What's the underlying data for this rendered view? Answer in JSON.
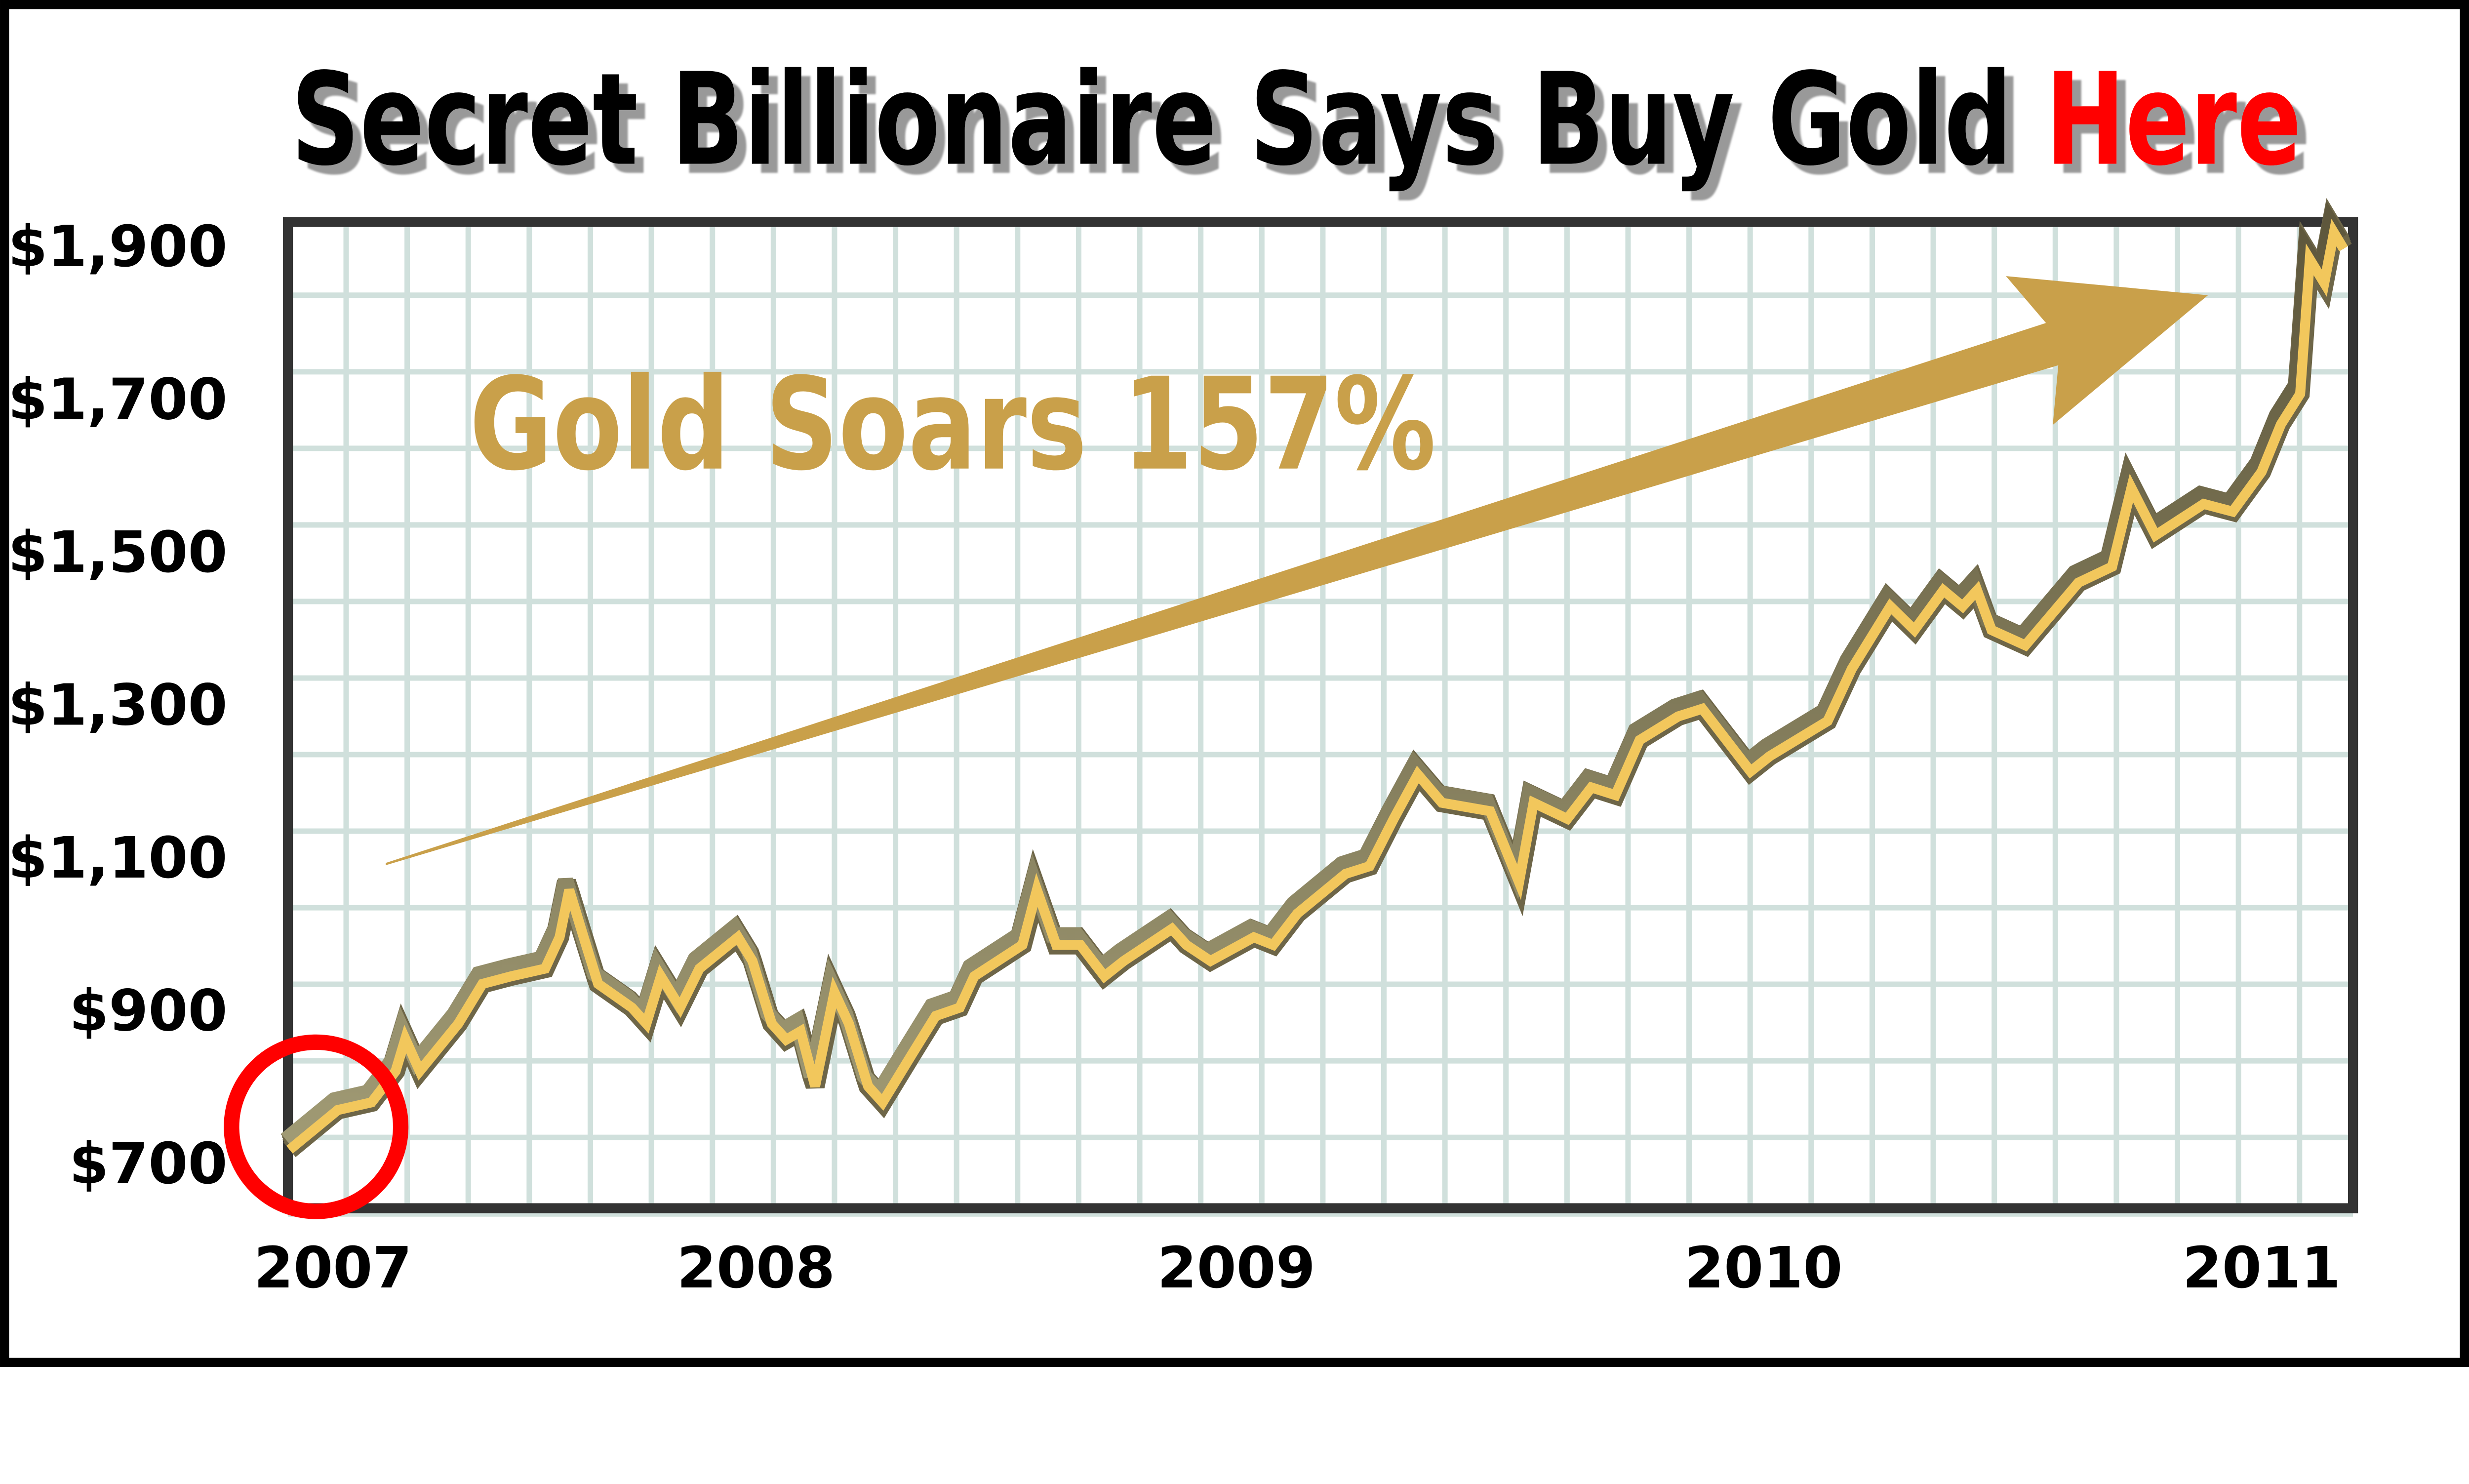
{
  "chart_data": {
    "type": "line",
    "title": "Secret Billionaire Says Buy Gold",
    "title_highlight": "Here",
    "xlabel": "",
    "ylabel": "",
    "y_tick_labels": [
      "$700",
      "$900",
      "$1,100",
      "$1,300",
      "$1,500",
      "$1,700",
      "$1,900"
    ],
    "y_tick_values": [
      700,
      900,
      1100,
      1300,
      1500,
      1700,
      1900
    ],
    "x_tick_labels": [
      "2007",
      "2008",
      "2009",
      "2010",
      "2011"
    ],
    "x_tick_values": [
      2007,
      2008,
      2009,
      2010,
      2011
    ],
    "ylim": [
      640,
      1960
    ],
    "xlim": [
      2006.9,
      2011.2
    ],
    "grid": true,
    "annotation": "Gold Soars 157%",
    "colors": {
      "line": "#f2c75c",
      "line_shadow": "#6e6648",
      "arrow": "#c9a04a",
      "annotation": "#c9a04a",
      "highlight": "#ff0000",
      "circle": "#ff0000",
      "grid": "#d0e0dc",
      "frame": "#333333"
    },
    "series": [
      {
        "points": [
          [
            2006.91,
            717
          ],
          [
            2007.01,
            769
          ],
          [
            2007.08,
            779
          ],
          [
            2007.13,
            820
          ],
          [
            2007.15,
            862
          ],
          [
            2007.18,
            820
          ],
          [
            2007.26,
            882
          ],
          [
            2007.31,
            934
          ],
          [
            2007.37,
            944
          ],
          [
            2007.44,
            954
          ],
          [
            2007.47,
            995
          ],
          [
            2007.49,
            1057
          ],
          [
            2007.52,
            995
          ],
          [
            2007.55,
            934
          ],
          [
            2007.62,
            903
          ],
          [
            2007.65,
            882
          ],
          [
            2007.68,
            944
          ],
          [
            2007.72,
            903
          ],
          [
            2007.76,
            954
          ],
          [
            2007.84,
            995
          ],
          [
            2007.87,
            964
          ],
          [
            2007.91,
            882
          ],
          [
            2007.94,
            861
          ],
          [
            2007.97,
            872
          ],
          [
            2008.0,
            800
          ],
          [
            2008.04,
            923
          ],
          [
            2008.07,
            882
          ],
          [
            2008.11,
            800
          ],
          [
            2008.14,
            779
          ],
          [
            2008.2,
            841
          ],
          [
            2008.25,
            892
          ],
          [
            2008.3,
            903
          ],
          [
            2008.33,
            944
          ],
          [
            2008.43,
            985
          ],
          [
            2008.46,
            1057
          ],
          [
            2008.5,
            985
          ],
          [
            2008.55,
            985
          ],
          [
            2008.6,
            944
          ],
          [
            2008.64,
            964
          ],
          [
            2008.74,
            1006
          ],
          [
            2008.77,
            985
          ],
          [
            2008.82,
            964
          ],
          [
            2008.91,
            995
          ],
          [
            2008.95,
            985
          ],
          [
            2009.0,
            1026
          ],
          [
            2009.1,
            1078
          ],
          [
            2009.15,
            1088
          ],
          [
            2009.2,
            1150
          ],
          [
            2009.25,
            1208
          ],
          [
            2009.3,
            1171
          ],
          [
            2009.4,
            1160
          ],
          [
            2009.46,
            1067
          ],
          [
            2009.49,
            1171
          ],
          [
            2009.56,
            1150
          ],
          [
            2009.61,
            1191
          ],
          [
            2009.66,
            1181
          ],
          [
            2009.71,
            1253
          ],
          [
            2009.79,
            1284
          ],
          [
            2009.84,
            1294
          ],
          [
            2009.89,
            1253
          ],
          [
            2009.94,
            1212
          ],
          [
            2009.98,
            1232
          ],
          [
            2010.1,
            1278
          ],
          [
            2010.15,
            1346
          ],
          [
            2010.23,
            1428
          ],
          [
            2010.28,
            1397
          ],
          [
            2010.34,
            1449
          ],
          [
            2010.38,
            1428
          ],
          [
            2010.41,
            1449
          ],
          [
            2010.44,
            1397
          ],
          [
            2010.51,
            1377
          ],
          [
            2010.62,
            1459
          ],
          [
            2010.69,
            1480
          ],
          [
            2010.73,
            1583
          ],
          [
            2010.78,
            1521
          ],
          [
            2010.88,
            1562
          ],
          [
            2010.94,
            1552
          ],
          [
            2011.0,
            1604
          ],
          [
            2011.04,
            1666
          ],
          [
            2011.08,
            1706
          ],
          [
            2011.1,
            1882
          ],
          [
            2011.13,
            1851
          ],
          [
            2011.15,
            1917
          ],
          [
            2011.17,
            1896
          ]
        ]
      }
    ]
  }
}
